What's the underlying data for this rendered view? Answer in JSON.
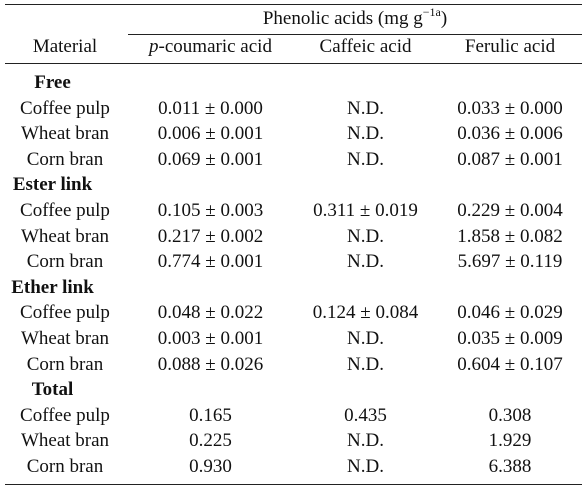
{
  "table": {
    "header": {
      "span_label": "Phenolic acids (mg g",
      "span_sup": "−1a",
      "span_close": ")",
      "material": "Material",
      "p_prefix": "p",
      "p_rest": "-coumaric acid",
      "caffeic": "Caffeic acid",
      "ferulic": "Ferulic acid"
    },
    "groups": [
      {
        "label": "Free",
        "rows": [
          {
            "material": "Coffee pulp",
            "p": "0.011 ± 0.000",
            "caffeic": "N.D.",
            "ferulic": "0.033 ± 0.000"
          },
          {
            "material": "Wheat bran",
            "p": "0.006 ± 0.001",
            "caffeic": "N.D.",
            "ferulic": "0.036 ± 0.006"
          },
          {
            "material": "Corn bran",
            "p": "0.069 ± 0.001",
            "caffeic": "N.D.",
            "ferulic": "0.087 ± 0.001"
          }
        ]
      },
      {
        "label": "Ester link",
        "rows": [
          {
            "material": "Coffee pulp",
            "p": "0.105 ± 0.003",
            "caffeic": "0.311 ± 0.019",
            "ferulic": "0.229 ± 0.004"
          },
          {
            "material": "Wheat bran",
            "p": "0.217 ± 0.002",
            "caffeic": "N.D.",
            "ferulic": "1.858 ± 0.082"
          },
          {
            "material": "Corn bran",
            "p": "0.774 ± 0.001",
            "caffeic": "N.D.",
            "ferulic": "5.697 ± 0.119"
          }
        ]
      },
      {
        "label": "Ether link",
        "rows": [
          {
            "material": "Coffee pulp",
            "p": "0.048 ± 0.022",
            "caffeic": "0.124 ± 0.084",
            "ferulic": "0.046 ± 0.029"
          },
          {
            "material": "Wheat bran",
            "p": "0.003 ± 0.001",
            "caffeic": "N.D.",
            "ferulic": "0.035 ± 0.009"
          },
          {
            "material": "Corn bran",
            "p": "0.088 ± 0.026",
            "caffeic": "N.D.",
            "ferulic": "0.604 ± 0.107"
          }
        ]
      },
      {
        "label": "Total",
        "rows": [
          {
            "material": "Coffee pulp",
            "p": "0.165",
            "caffeic": "0.435",
            "ferulic": "0.308"
          },
          {
            "material": "Wheat bran",
            "p": "0.225",
            "caffeic": "N.D.",
            "ferulic": "1.929"
          },
          {
            "material": "Corn bran",
            "p": "0.930",
            "caffeic": "N.D.",
            "ferulic": "6.388"
          }
        ]
      }
    ]
  }
}
